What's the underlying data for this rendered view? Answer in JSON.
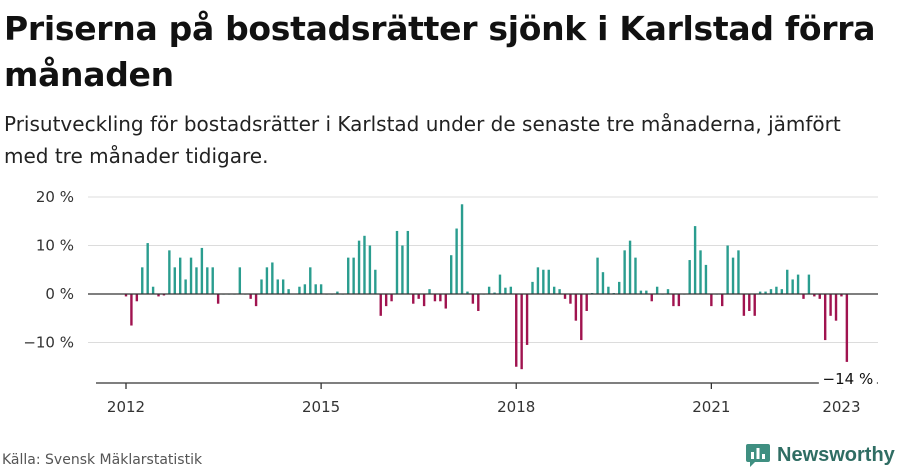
{
  "title": "Priserna på bostadsrätter sjönk i Karlstad förra månaden",
  "subtitle": "Prisutveckling för bostadsrätter i Karlstad under de senaste tre månaderna, jämfört med tre månader tidigare.",
  "source": "Källa: Svensk Mäklarstatistik",
  "brand": "Newsworthy",
  "colors": {
    "positive": "#2a9d8f",
    "negative": "#a0134f",
    "grid": "#dcdcdc",
    "axis": "#333333",
    "brand": "#2f6d63"
  },
  "chart_data": {
    "type": "bar",
    "title": "Priserna på bostadsrätter sjönk i Karlstad förra månaden",
    "xlabel": "",
    "ylabel": "",
    "ylim": [
      -18,
      22
    ],
    "yticks": [
      20,
      10,
      0,
      -10
    ],
    "ytick_labels": [
      "20 %",
      "10 %",
      "0 %",
      "−10 %"
    ],
    "xticks": [
      "2012",
      "2015",
      "2018",
      "2021",
      "2023"
    ],
    "last_label": "−14 %",
    "start": "2012-01",
    "end": "2023-01",
    "unit": "%",
    "values": [
      -0.5,
      -6.5,
      -1.5,
      5.5,
      10.5,
      1.5,
      -0.5,
      -0.3,
      9,
      5.5,
      7.5,
      3,
      7.5,
      5.5,
      9.5,
      5.5,
      5.5,
      -2,
      0,
      0,
      0,
      5.5,
      0,
      -1,
      -2.5,
      3,
      5.5,
      6.5,
      3,
      3,
      1,
      0.1,
      1.5,
      2,
      5.5,
      2,
      2,
      0,
      0,
      0.5,
      0,
      7.5,
      7.5,
      11,
      12,
      10,
      5,
      -4.5,
      -2.5,
      -1.5,
      13,
      10,
      13,
      -2,
      -1,
      -2.5,
      1,
      -1.5,
      -1.5,
      -3,
      8,
      13.5,
      18.5,
      0.5,
      -2,
      -3.5,
      0,
      1.5,
      0.3,
      4,
      1.3,
      1.5,
      -15,
      -15.5,
      -10.5,
      2.5,
      5.5,
      5,
      5,
      1.5,
      1,
      -1,
      -2,
      -5.5,
      -9.5,
      -3.5,
      0.2,
      7.5,
      4.5,
      1.5,
      0.2,
      2.5,
      9,
      11,
      7.5,
      0.7,
      0.7,
      -1.5,
      1.5,
      0,
      1,
      -2.5,
      -2.5,
      0,
      7,
      14,
      9,
      6,
      -2.5,
      0,
      -2.5,
      10,
      7.5,
      9,
      -4.5,
      -3.5,
      -4.5,
      0.5,
      0.5,
      1,
      1.5,
      1,
      5,
      3,
      4,
      -1,
      4,
      -0.5,
      -1,
      -9.5,
      -4.5,
      -5.5,
      -0.5,
      -14
    ]
  }
}
